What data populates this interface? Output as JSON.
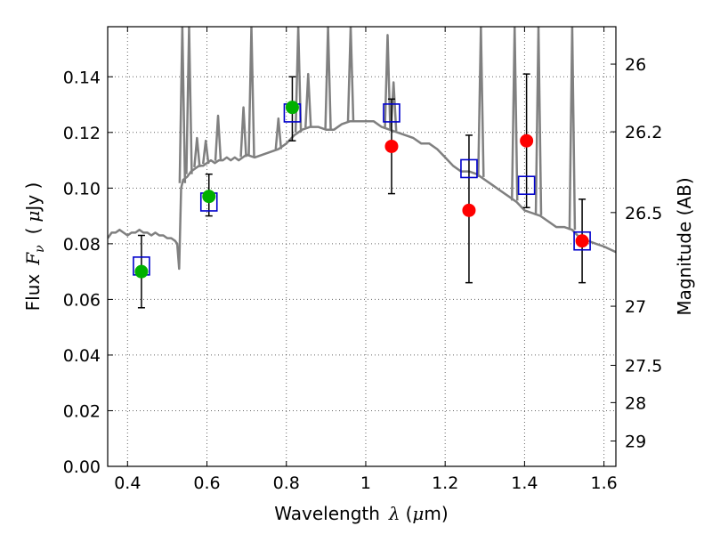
{
  "chart_data": {
    "type": "scatter",
    "title": "",
    "xlabel": {
      "prefix": "Wavelength",
      "symbol": "λ",
      "unit_open": "(",
      "unit_mu": "μ",
      "unit_rest": "m)"
    },
    "ylabel": {
      "prefix": "Flux",
      "symbol": "F",
      "subscript": "ν",
      "unit_open": "(",
      "unit_mu": "μ",
      "unit_rest": "Jy )"
    },
    "y2label": "Magnitude (AB)",
    "xlim": [
      0.35,
      1.63
    ],
    "ylim": [
      0.0,
      0.158
    ],
    "xticks": [
      0.4,
      0.6,
      0.8,
      1.0,
      1.2,
      1.4,
      1.6
    ],
    "xtick_labels": [
      "0.4",
      "0.6",
      "0.8",
      "1",
      "1.2",
      "1.4",
      "1.6"
    ],
    "yticks": [
      0.0,
      0.02,
      0.04,
      0.06,
      0.08,
      0.1,
      0.12,
      0.14
    ],
    "ytick_labels": [
      "0.00",
      "0.02",
      "0.04",
      "0.06",
      "0.08",
      "0.10",
      "0.12",
      "0.14"
    ],
    "y2ticks": [
      {
        "mag": 26,
        "label": "26"
      },
      {
        "mag": 26.2,
        "label": "26.2"
      },
      {
        "mag": 26.5,
        "label": "26.5"
      },
      {
        "mag": 27,
        "label": "27"
      },
      {
        "mag": 27.5,
        "label": "27.5"
      },
      {
        "mag": 28,
        "label": "28"
      },
      {
        "mag": 29,
        "label": "29"
      }
    ],
    "grid": true,
    "colors": {
      "model": "#808080",
      "observed_optical": "#00b000",
      "observed_nir": "#ff0000",
      "model_photometry": "#0000cc",
      "errorbar": "#000000"
    },
    "model_spectrum": {
      "x": [
        0.35,
        0.36,
        0.37,
        0.38,
        0.39,
        0.4,
        0.41,
        0.42,
        0.43,
        0.44,
        0.45,
        0.46,
        0.47,
        0.48,
        0.49,
        0.5,
        0.51,
        0.52,
        0.525,
        0.53,
        0.535,
        0.54,
        0.55,
        0.56,
        0.57,
        0.58,
        0.59,
        0.6,
        0.61,
        0.62,
        0.63,
        0.64,
        0.65,
        0.66,
        0.67,
        0.68,
        0.69,
        0.7,
        0.72,
        0.74,
        0.76,
        0.78,
        0.8,
        0.82,
        0.84,
        0.86,
        0.88,
        0.9,
        0.92,
        0.94,
        0.96,
        0.98,
        1.0,
        1.02,
        1.04,
        1.06,
        1.08,
        1.1,
        1.12,
        1.14,
        1.16,
        1.18,
        1.2,
        1.22,
        1.24,
        1.26,
        1.28,
        1.3,
        1.32,
        1.34,
        1.36,
        1.38,
        1.4,
        1.42,
        1.44,
        1.46,
        1.48,
        1.5,
        1.52,
        1.54,
        1.56,
        1.58,
        1.6,
        1.63
      ],
      "y": [
        0.082,
        0.084,
        0.084,
        0.085,
        0.084,
        0.083,
        0.084,
        0.084,
        0.085,
        0.084,
        0.084,
        0.083,
        0.084,
        0.083,
        0.083,
        0.082,
        0.082,
        0.081,
        0.08,
        0.071,
        0.1,
        0.103,
        0.104,
        0.106,
        0.107,
        0.108,
        0.108,
        0.109,
        0.11,
        0.109,
        0.11,
        0.11,
        0.111,
        0.11,
        0.111,
        0.11,
        0.111,
        0.112,
        0.111,
        0.112,
        0.113,
        0.114,
        0.116,
        0.119,
        0.121,
        0.122,
        0.122,
        0.121,
        0.121,
        0.123,
        0.124,
        0.124,
        0.124,
        0.124,
        0.122,
        0.121,
        0.12,
        0.119,
        0.118,
        0.116,
        0.116,
        0.114,
        0.111,
        0.108,
        0.106,
        0.106,
        0.105,
        0.103,
        0.101,
        0.099,
        0.097,
        0.095,
        0.092,
        0.091,
        0.09,
        0.088,
        0.086,
        0.086,
        0.085,
        0.082,
        0.081,
        0.08,
        0.079,
        0.077
      ],
      "emission_lines": [
        {
          "x": 0.538,
          "peak": 0.158
        },
        {
          "x": 0.555,
          "peak": 0.158
        },
        {
          "x": 0.575,
          "peak": 0.118
        },
        {
          "x": 0.597,
          "peak": 0.117
        },
        {
          "x": 0.628,
          "peak": 0.126
        },
        {
          "x": 0.692,
          "peak": 0.129
        },
        {
          "x": 0.712,
          "peak": 0.158
        },
        {
          "x": 0.78,
          "peak": 0.125
        },
        {
          "x": 0.83,
          "peak": 0.158
        },
        {
          "x": 0.855,
          "peak": 0.141
        },
        {
          "x": 0.905,
          "peak": 0.158
        },
        {
          "x": 0.962,
          "peak": 0.158
        },
        {
          "x": 1.055,
          "peak": 0.155
        },
        {
          "x": 1.07,
          "peak": 0.138
        },
        {
          "x": 1.29,
          "peak": 0.158
        },
        {
          "x": 1.375,
          "peak": 0.158
        },
        {
          "x": 1.435,
          "peak": 0.158
        },
        {
          "x": 1.52,
          "peak": 0.158
        }
      ]
    },
    "series": [
      {
        "marker": "circle",
        "color": "observed_optical",
        "x": [
          0.435,
          0.605,
          0.815
        ],
        "y": [
          0.07,
          0.097,
          0.129
        ],
        "yerr_low": [
          0.057,
          0.09,
          0.117
        ],
        "yerr_high": [
          0.083,
          0.105,
          0.14
        ]
      },
      {
        "marker": "circle",
        "color": "observed_nir",
        "x": [
          1.065,
          1.26,
          1.405,
          1.545
        ],
        "y": [
          0.115,
          0.092,
          0.117,
          0.081
        ],
        "yerr_low": [
          0.098,
          0.066,
          0.093,
          0.066
        ],
        "yerr_high": [
          0.132,
          0.119,
          0.141,
          0.096
        ]
      },
      {
        "marker": "open-square",
        "color": "model_photometry",
        "x": [
          0.435,
          0.605,
          0.815,
          1.065,
          1.26,
          1.405,
          1.545
        ],
        "y": [
          0.072,
          0.095,
          0.127,
          0.127,
          0.107,
          0.101,
          0.081
        ]
      }
    ]
  }
}
